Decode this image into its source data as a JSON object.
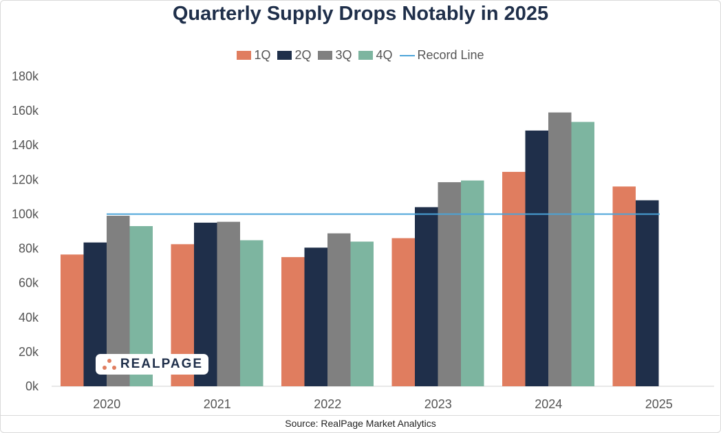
{
  "colors": {
    "q1": "#e07d5f",
    "q2": "#1f2f4a",
    "q3": "#808080",
    "q4": "#7db5a0",
    "record": "#4aa3d8",
    "axis_text": "#555555",
    "title": "#1f2f4a"
  },
  "logo": {
    "text": "REALPAGE",
    "icon": "realpage-dots-icon"
  },
  "chart_data": {
    "type": "bar",
    "title": "Quarterly Supply Drops Notably in 2025",
    "source": "Source: RealPage Market Analytics",
    "categories": [
      "2020",
      "2021",
      "2022",
      "2023",
      "2024",
      "2025"
    ],
    "series": [
      {
        "name": "1Q",
        "values": [
          76500,
          82500,
          75000,
          86000,
          124500,
          116000
        ]
      },
      {
        "name": "2Q",
        "values": [
          83500,
          95000,
          80500,
          104000,
          148500,
          108000
        ]
      },
      {
        "name": "3Q",
        "values": [
          99000,
          95500,
          88800,
          118500,
          159000,
          null
        ]
      },
      {
        "name": "4Q",
        "values": [
          93000,
          84800,
          84000,
          119500,
          153500,
          null
        ]
      }
    ],
    "record_line": {
      "name": "Record Line",
      "value": 100000
    },
    "ylim": [
      0,
      180000
    ],
    "yticks": [
      "0k",
      "20k",
      "40k",
      "60k",
      "80k",
      "100k",
      "120k",
      "140k",
      "160k",
      "180k"
    ],
    "legend_position": "top-center",
    "xlabel": "",
    "ylabel": ""
  }
}
